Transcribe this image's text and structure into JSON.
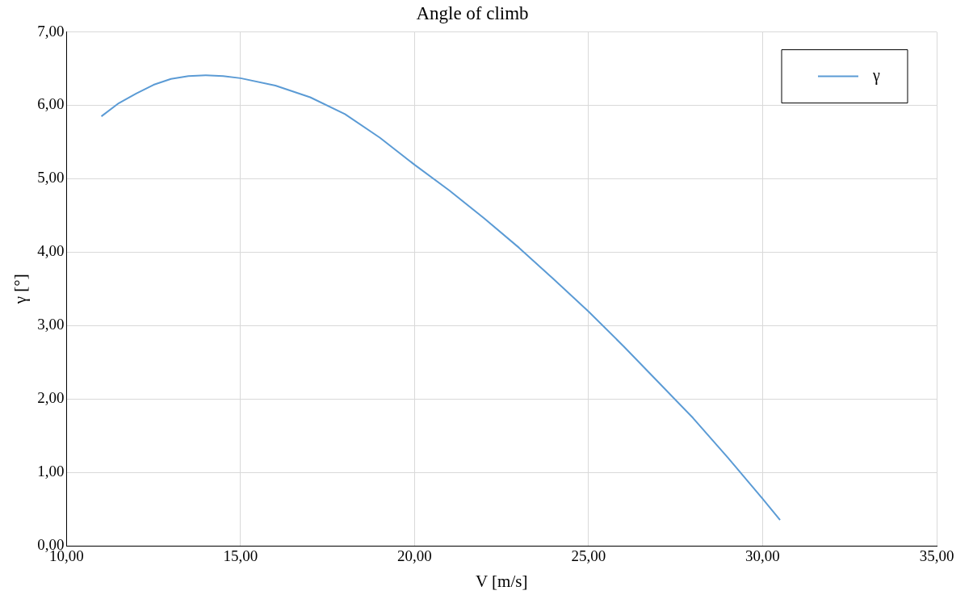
{
  "chart_data": {
    "type": "line",
    "title": "Angle of climb",
    "xlabel": "V [m/s]",
    "ylabel": "γ [°]",
    "x": [
      11,
      11.5,
      12,
      12.5,
      13,
      13.5,
      14,
      14.5,
      15,
      16,
      17,
      18,
      19,
      20,
      21,
      22,
      23,
      24,
      25,
      26,
      27,
      28,
      29,
      30,
      30.5
    ],
    "series": [
      {
        "name": "γ",
        "color": "#5b9bd5",
        "values": [
          5.85,
          6.03,
          6.16,
          6.28,
          6.36,
          6.4,
          6.41,
          6.4,
          6.37,
          6.27,
          6.11,
          5.88,
          5.56,
          5.19,
          4.84,
          4.46,
          4.06,
          3.63,
          3.19,
          2.72,
          2.23,
          1.74,
          1.2,
          0.64,
          0.35
        ]
      }
    ],
    "xlim": [
      10,
      35
    ],
    "xticks": [
      {
        "value": 10,
        "label": "10,00"
      },
      {
        "value": 15,
        "label": "15,00"
      },
      {
        "value": 20,
        "label": "20,00"
      },
      {
        "value": 25,
        "label": "25,00"
      },
      {
        "value": 30,
        "label": "30,00"
      },
      {
        "value": 35,
        "label": "35,00"
      }
    ],
    "ylim": [
      0,
      7
    ],
    "yticks": [
      {
        "value": 0,
        "label": "0,00"
      },
      {
        "value": 1,
        "label": "1,00"
      },
      {
        "value": 2,
        "label": "2,00"
      },
      {
        "value": 3,
        "label": "3,00"
      },
      {
        "value": 4,
        "label": "4,00"
      },
      {
        "value": 5,
        "label": "5,00"
      },
      {
        "value": 6,
        "label": "6,00"
      },
      {
        "value": 7,
        "label": "7,00"
      }
    ],
    "grid": true,
    "legend": "top right",
    "marker": "none",
    "line_style": "solid"
  }
}
